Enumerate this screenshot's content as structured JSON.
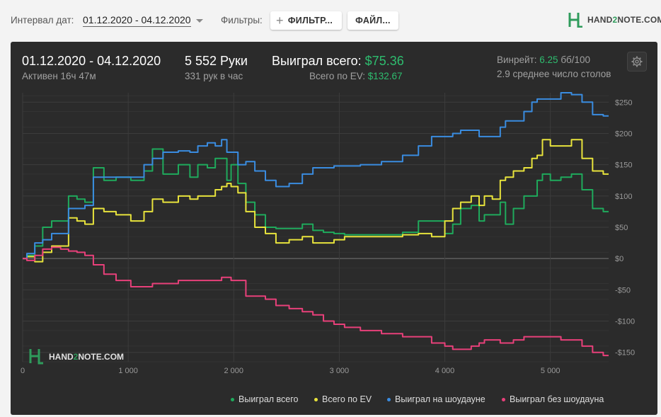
{
  "topbar": {
    "date_label": "Интервал дат:",
    "date_range": "01.12.2020 - 04.12.2020",
    "filters_label": "Фильтры:",
    "filter_button": "ФИЛЬТР...",
    "files_button": "ФАЙЛ...",
    "logo_h": "HAND",
    "logo_2": "2",
    "logo_n": "NOTE.COM"
  },
  "summary": {
    "period": "01.12.2020 - 04.12.2020",
    "active": "Активен 16ч 47м",
    "hands": "5 552 Руки",
    "hands_per_hour": "331 рук в час",
    "won_label": "Выиграл всего:",
    "won_value": "$75.36",
    "ev_label": "Всего по EV:",
    "ev_value": "$132.67",
    "winrate_label": "Винрейт:",
    "winrate_value": "6.25",
    "winrate_unit": "бб/100",
    "tables": "2.9 среднее число столов"
  },
  "watermark": {
    "h": "HAND",
    "two": "2",
    "n": "NOTE.COM"
  },
  "chart_data": {
    "type": "line",
    "xlim": [
      0,
      5552
    ],
    "ylim": [
      -165,
      265
    ],
    "x_ticks": [
      {
        "value": 0,
        "label": "0"
      },
      {
        "value": 1000,
        "label": "1 000"
      },
      {
        "value": 2000,
        "label": "2 000"
      },
      {
        "value": 3000,
        "label": "3 000"
      },
      {
        "value": 4000,
        "label": "4 000"
      },
      {
        "value": 5000,
        "label": "5 000"
      }
    ],
    "y_ticks": [
      {
        "value": 250,
        "label": "$250"
      },
      {
        "value": 200,
        "label": "$200"
      },
      {
        "value": 150,
        "label": "$150"
      },
      {
        "value": 100,
        "label": "$100"
      },
      {
        "value": 50,
        "label": "$50"
      },
      {
        "value": 0,
        "label": "$0"
      },
      {
        "value": -50,
        "label": "-$50"
      },
      {
        "value": -100,
        "label": "-$100"
      },
      {
        "value": -150,
        "label": "-$150"
      }
    ],
    "grid": true,
    "legend_position": "bottom-right",
    "series": [
      {
        "name": "Выиграл всего",
        "color": "#1faa5c",
        "points": [
          [
            0,
            0
          ],
          [
            80,
            5
          ],
          [
            150,
            20
          ],
          [
            230,
            50
          ],
          [
            320,
            60
          ],
          [
            400,
            60
          ],
          [
            470,
            100
          ],
          [
            560,
            95
          ],
          [
            620,
            90
          ],
          [
            720,
            145
          ],
          [
            820,
            125
          ],
          [
            950,
            130
          ],
          [
            1100,
            125
          ],
          [
            1200,
            140
          ],
          [
            1260,
            175
          ],
          [
            1400,
            135
          ],
          [
            1550,
            150
          ],
          [
            1620,
            130
          ],
          [
            1700,
            150
          ],
          [
            1800,
            145
          ],
          [
            1850,
            160
          ],
          [
            1920,
            160
          ],
          [
            1950,
            125
          ],
          [
            2000,
            150
          ],
          [
            2080,
            120
          ],
          [
            2150,
            90
          ],
          [
            2250,
            70
          ],
          [
            2350,
            50
          ],
          [
            2450,
            48
          ],
          [
            2600,
            48
          ],
          [
            2700,
            55
          ],
          [
            2800,
            45
          ],
          [
            2900,
            42
          ],
          [
            3000,
            40
          ],
          [
            3100,
            38
          ],
          [
            3300,
            38
          ],
          [
            3500,
            38
          ],
          [
            3700,
            42
          ],
          [
            3800,
            60
          ],
          [
            3950,
            60
          ],
          [
            4050,
            40
          ],
          [
            4100,
            55
          ],
          [
            4200,
            80
          ],
          [
            4300,
            85
          ],
          [
            4350,
            60
          ],
          [
            4400,
            70
          ],
          [
            4500,
            70
          ],
          [
            4550,
            90
          ],
          [
            4600,
            55
          ],
          [
            4700,
            80
          ],
          [
            4800,
            100
          ],
          [
            4850,
            100
          ],
          [
            4900,
            125
          ],
          [
            4950,
            135
          ],
          [
            5050,
            125
          ],
          [
            5150,
            130
          ],
          [
            5250,
            135
          ],
          [
            5350,
            110
          ],
          [
            5450,
            80
          ],
          [
            5552,
            75
          ]
        ]
      },
      {
        "name": "Всего по EV",
        "color": "#e8e33c",
        "points": [
          [
            0,
            0
          ],
          [
            80,
            3
          ],
          [
            150,
            -5
          ],
          [
            230,
            10
          ],
          [
            320,
            20
          ],
          [
            400,
            20
          ],
          [
            470,
            65
          ],
          [
            560,
            60
          ],
          [
            620,
            55
          ],
          [
            720,
            80
          ],
          [
            820,
            75
          ],
          [
            950,
            70
          ],
          [
            1100,
            60
          ],
          [
            1200,
            75
          ],
          [
            1260,
            95
          ],
          [
            1400,
            90
          ],
          [
            1550,
            100
          ],
          [
            1620,
            95
          ],
          [
            1700,
            100
          ],
          [
            1800,
            100
          ],
          [
            1850,
            110
          ],
          [
            1920,
            115
          ],
          [
            1950,
            120
          ],
          [
            2000,
            115
          ],
          [
            2080,
            105
          ],
          [
            2150,
            75
          ],
          [
            2250,
            50
          ],
          [
            2350,
            40
          ],
          [
            2450,
            25
          ],
          [
            2600,
            30
          ],
          [
            2700,
            35
          ],
          [
            2800,
            25
          ],
          [
            2900,
            25
          ],
          [
            3000,
            30
          ],
          [
            3100,
            35
          ],
          [
            3300,
            35
          ],
          [
            3500,
            35
          ],
          [
            3700,
            38
          ],
          [
            3800,
            40
          ],
          [
            3950,
            35
          ],
          [
            4050,
            60
          ],
          [
            4100,
            80
          ],
          [
            4200,
            90
          ],
          [
            4300,
            100
          ],
          [
            4350,
            85
          ],
          [
            4400,
            100
          ],
          [
            4500,
            95
          ],
          [
            4550,
            125
          ],
          [
            4600,
            130
          ],
          [
            4700,
            140
          ],
          [
            4800,
            145
          ],
          [
            4850,
            160
          ],
          [
            4900,
            165
          ],
          [
            4950,
            190
          ],
          [
            5050,
            180
          ],
          [
            5150,
            180
          ],
          [
            5250,
            190
          ],
          [
            5350,
            160
          ],
          [
            5450,
            140
          ],
          [
            5552,
            135
          ]
        ]
      },
      {
        "name": "Выиграл на шоудауне",
        "color": "#3a8ce0",
        "points": [
          [
            0,
            0
          ],
          [
            80,
            8
          ],
          [
            150,
            25
          ],
          [
            230,
            30
          ],
          [
            320,
            40
          ],
          [
            400,
            40
          ],
          [
            470,
            80
          ],
          [
            560,
            80
          ],
          [
            620,
            85
          ],
          [
            720,
            130
          ],
          [
            820,
            130
          ],
          [
            950,
            130
          ],
          [
            1100,
            130
          ],
          [
            1200,
            150
          ],
          [
            1260,
            160
          ],
          [
            1400,
            170
          ],
          [
            1550,
            172
          ],
          [
            1620,
            170
          ],
          [
            1700,
            180
          ],
          [
            1800,
            185
          ],
          [
            1850,
            180
          ],
          [
            1920,
            190
          ],
          [
            1950,
            170
          ],
          [
            2000,
            170
          ],
          [
            2080,
            150
          ],
          [
            2150,
            155
          ],
          [
            2250,
            140
          ],
          [
            2350,
            125
          ],
          [
            2450,
            115
          ],
          [
            2600,
            120
          ],
          [
            2700,
            135
          ],
          [
            2800,
            145
          ],
          [
            2900,
            145
          ],
          [
            3000,
            148
          ],
          [
            3100,
            148
          ],
          [
            3300,
            150
          ],
          [
            3500,
            155
          ],
          [
            3700,
            165
          ],
          [
            3800,
            180
          ],
          [
            3950,
            195
          ],
          [
            4050,
            195
          ],
          [
            4100,
            200
          ],
          [
            4200,
            205
          ],
          [
            4300,
            205
          ],
          [
            4350,
            195
          ],
          [
            4400,
            195
          ],
          [
            4500,
            195
          ],
          [
            4550,
            210
          ],
          [
            4600,
            220
          ],
          [
            4700,
            220
          ],
          [
            4800,
            235
          ],
          [
            4850,
            250
          ],
          [
            4900,
            255
          ],
          [
            4950,
            255
          ],
          [
            5050,
            255
          ],
          [
            5150,
            265
          ],
          [
            5250,
            262
          ],
          [
            5350,
            250
          ],
          [
            5450,
            230
          ],
          [
            5552,
            228
          ]
        ]
      },
      {
        "name": "Выиграл без шоудауна",
        "color": "#e8407a",
        "points": [
          [
            0,
            0
          ],
          [
            80,
            -3
          ],
          [
            150,
            5
          ],
          [
            230,
            15
          ],
          [
            320,
            18
          ],
          [
            400,
            15
          ],
          [
            470,
            12
          ],
          [
            560,
            10
          ],
          [
            620,
            5
          ],
          [
            720,
            -10
          ],
          [
            820,
            -25
          ],
          [
            950,
            -35
          ],
          [
            1100,
            -45
          ],
          [
            1200,
            -45
          ],
          [
            1260,
            -40
          ],
          [
            1400,
            -40
          ],
          [
            1550,
            -35
          ],
          [
            1620,
            -35
          ],
          [
            1700,
            -35
          ],
          [
            1800,
            -35
          ],
          [
            1850,
            -35
          ],
          [
            1920,
            -30
          ],
          [
            1950,
            -30
          ],
          [
            2000,
            -35
          ],
          [
            2080,
            -35
          ],
          [
            2150,
            -60
          ],
          [
            2250,
            -60
          ],
          [
            2350,
            -65
          ],
          [
            2450,
            -75
          ],
          [
            2600,
            -80
          ],
          [
            2700,
            -85
          ],
          [
            2800,
            -90
          ],
          [
            2900,
            -100
          ],
          [
            3000,
            -105
          ],
          [
            3100,
            -110
          ],
          [
            3300,
            -115
          ],
          [
            3500,
            -120
          ],
          [
            3700,
            -125
          ],
          [
            3800,
            -125
          ],
          [
            3950,
            -135
          ],
          [
            4050,
            -140
          ],
          [
            4100,
            -145
          ],
          [
            4200,
            -145
          ],
          [
            4300,
            -140
          ],
          [
            4350,
            -135
          ],
          [
            4400,
            -130
          ],
          [
            4500,
            -130
          ],
          [
            4550,
            -135
          ],
          [
            4600,
            -135
          ],
          [
            4700,
            -130
          ],
          [
            4800,
            -125
          ],
          [
            4850,
            -125
          ],
          [
            4900,
            -125
          ],
          [
            4950,
            -125
          ],
          [
            5050,
            -125
          ],
          [
            5150,
            -130
          ],
          [
            5250,
            -130
          ],
          [
            5350,
            -140
          ],
          [
            5450,
            -150
          ],
          [
            5552,
            -155
          ]
        ]
      }
    ]
  }
}
